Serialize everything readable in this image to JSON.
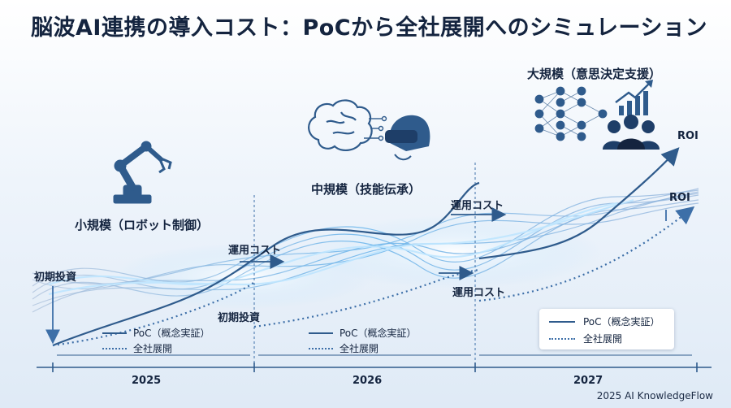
{
  "title": "脳波AI連携の導入コスト：PoCから全社展開へのシミュレーション",
  "stages": {
    "small": "小規模（ロボット制御）",
    "medium": "中規模（技能伝承）",
    "large": "大規模（意思決定支援）"
  },
  "flows": {
    "initial_investment": "初期投資",
    "operating_cost": "運用コスト",
    "roi": "ROI"
  },
  "legend": {
    "poc": "PoC（概念実証）",
    "enterprise": "全社展開"
  },
  "timeline": {
    "years": [
      "2025",
      "2026",
      "2027"
    ]
  },
  "credit": "2025 AI KnowledgeFlow",
  "icons": [
    "robot-arm-icon",
    "brain-circuit-icon",
    "vr-headset-icon",
    "neural-network-icon",
    "growth-chart-icon",
    "team-icon"
  ],
  "colors": {
    "accent": "#2f5b8c",
    "glow": "#7fc4f0",
    "text": "#14243f"
  }
}
